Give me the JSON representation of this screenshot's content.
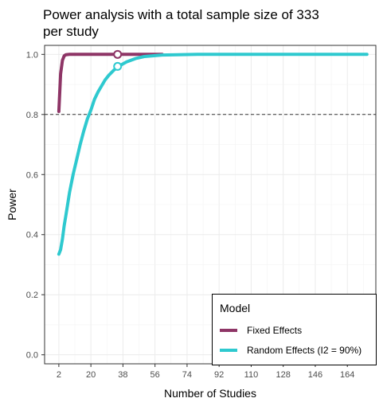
{
  "chart_data": {
    "type": "line",
    "title": "Power analysis with a total sample size of 333\nper study",
    "xlabel": "Number of Studies",
    "ylabel": "Power",
    "xlim": [
      -6,
      180
    ],
    "ylim": [
      -0.03,
      1.03
    ],
    "x_ticks": [
      2,
      20,
      38,
      56,
      74,
      92,
      110,
      128,
      146,
      164
    ],
    "y_ticks": [
      0.0,
      0.2,
      0.4,
      0.6,
      0.8,
      1.0
    ],
    "y_tick_labels": [
      "0.0",
      "0.2",
      "0.4",
      "0.6",
      "0.8",
      "1.0"
    ],
    "grid": true,
    "reference_line": {
      "y": 0.8,
      "style": "dashed"
    },
    "legend": {
      "title": "Model",
      "position": "bottom-right",
      "entries": [
        "Fixed Effects",
        "Random Effects (I2 = 90%)"
      ]
    },
    "series": [
      {
        "name": "Fixed Effects",
        "color": "#8e3566",
        "x": [
          2,
          3,
          4,
          5,
          6,
          8,
          12,
          20,
          35,
          60
        ],
        "values": [
          0.81,
          0.935,
          0.98,
          0.995,
          0.999,
          1.0,
          1.0,
          1.0,
          1.0,
          1.0
        ],
        "marker": {
          "x": 35,
          "y": 1.0
        }
      },
      {
        "name": "Random Effects (I2 = 90%)",
        "color": "#2ec9cf",
        "x": [
          2,
          3,
          4,
          5,
          6,
          8,
          10,
          12,
          14,
          16,
          18,
          20,
          22,
          24,
          26,
          28,
          30,
          33,
          36,
          40,
          45,
          50,
          60,
          80,
          100,
          130,
          160,
          175
        ],
        "values": [
          0.335,
          0.35,
          0.385,
          0.43,
          0.465,
          0.54,
          0.6,
          0.65,
          0.7,
          0.745,
          0.785,
          0.815,
          0.85,
          0.875,
          0.895,
          0.915,
          0.93,
          0.948,
          0.962,
          0.975,
          0.986,
          0.993,
          0.998,
          1.0,
          1.0,
          1.0,
          1.0,
          1.0
        ],
        "marker": {
          "x": 35,
          "y": 0.96
        }
      }
    ]
  }
}
